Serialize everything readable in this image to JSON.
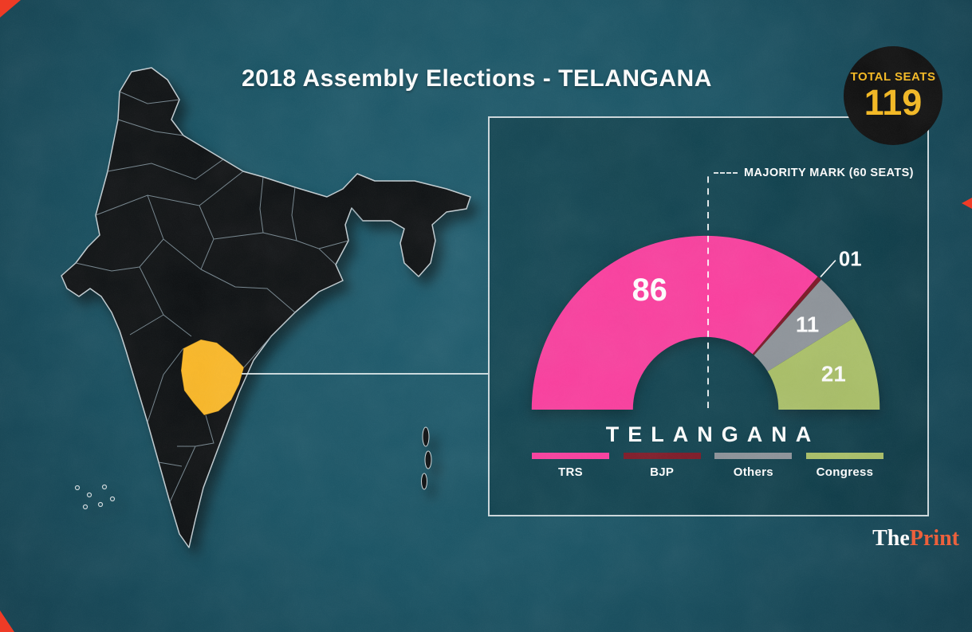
{
  "title": "2018 Assembly Elections - TELANGANA",
  "badge": {
    "label": "TOTAL SEATS",
    "value": "119"
  },
  "brand": {
    "part1": "The",
    "part2": "Print"
  },
  "colors": {
    "background": "#175263",
    "panel_border": "#cdd9dd",
    "map_fill": "#0b0e10",
    "state_line": "#8fa3ac",
    "telangana": "#fbb826",
    "badge_bg": "#0c0c0c",
    "badge_text": "#f6b91e",
    "brand_accent": "#f05a33",
    "crop_mark": "#ee3b26"
  },
  "chart_data": {
    "type": "half-donut",
    "title": "2018 Assembly Elections - TELANGANA",
    "region": "TELANGANA",
    "total_seats": 119,
    "majority_mark_seats": 60,
    "majority_label": "MAJORITY MARK (60 SEATS)",
    "legend_position": "bottom",
    "series": [
      {
        "name": "TRS",
        "seats": 86,
        "label": "86",
        "color": "#fb3d9e"
      },
      {
        "name": "BJP",
        "seats": 1,
        "label": "01",
        "color": "#7c1523"
      },
      {
        "name": "Others",
        "seats": 11,
        "label": "11",
        "color": "#8d9399"
      },
      {
        "name": "Congress",
        "seats": 21,
        "label": "21",
        "color": "#a9bf66"
      }
    ]
  }
}
